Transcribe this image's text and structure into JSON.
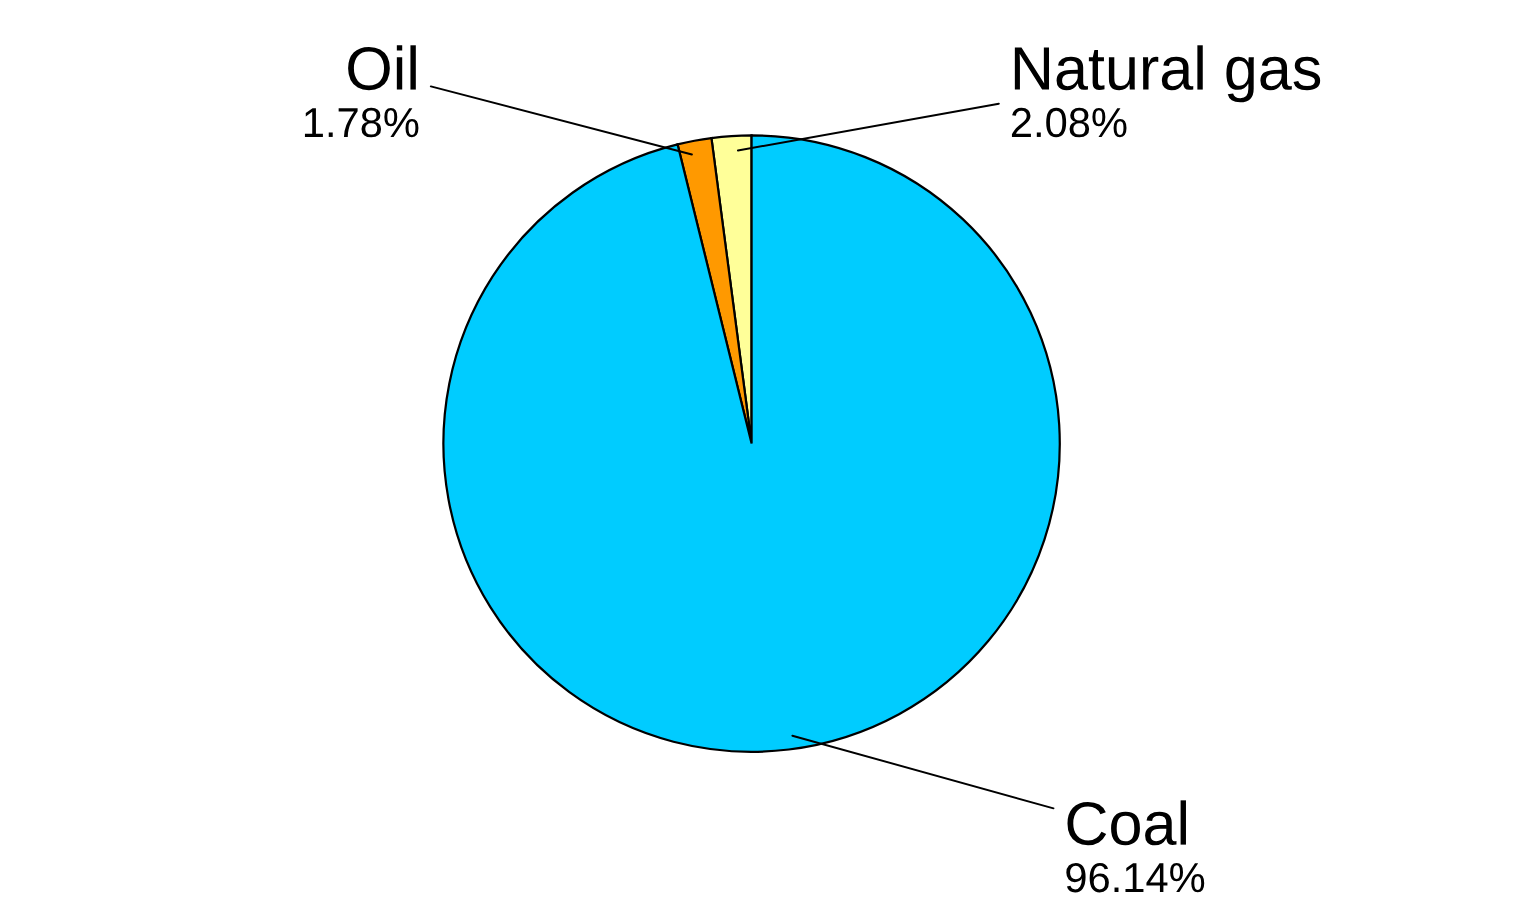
{
  "chart_data": {
    "type": "pie",
    "categories": [
      "Natural gas",
      "Oil",
      "Coal"
    ],
    "values": [
      2.08,
      1.78,
      96.14
    ],
    "colors": [
      "#ffff99",
      "#ff9900",
      "#00ccff"
    ],
    "value_labels": [
      "2.08%",
      "1.78%",
      "96.14%"
    ],
    "legend": false
  }
}
